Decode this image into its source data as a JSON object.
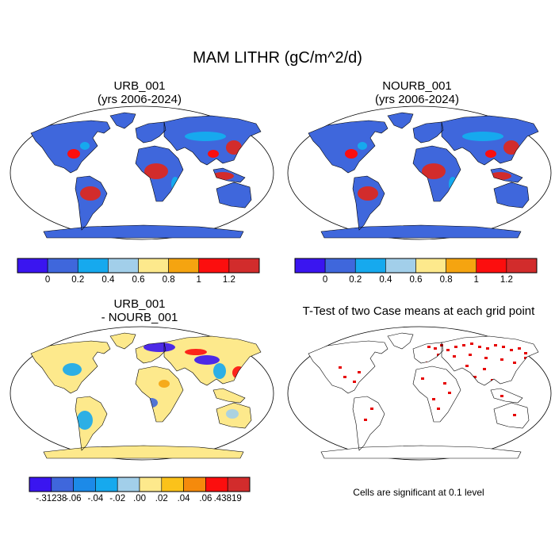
{
  "figure_title": "MAM LITHR (gC/m^2/d)",
  "panels": [
    {
      "title_line1": "URB_001",
      "title_line2": "(yrs 2006-2024)"
    },
    {
      "title_line1": "NOURB_001",
      "title_line2": "(yrs 2006-2024)"
    },
    {
      "title_line1": "URB_001",
      "title_line2": "- NOURB_001"
    },
    {
      "title_line1": "T-Test of two Case means at each grid point",
      "title_line2": ""
    }
  ],
  "colorbar_top": {
    "colors": [
      "#3a15f0",
      "#3f67dc",
      "#16a9ee",
      "#a2cfea",
      "#fde98c",
      "#f5a410",
      "#fc0e0e",
      "#d22c2c"
    ],
    "labels": [
      "0",
      "0.2",
      "0.4",
      "0.6",
      "0.8",
      "1",
      "1.2"
    ]
  },
  "colorbar_diff": {
    "colors": [
      "#3a15f0",
      "#3f67dc",
      "#1c8ae8",
      "#16a9ee",
      "#a2cfea",
      "#fde98c",
      "#fbc21a",
      "#f58a0c",
      "#fc0e0e",
      "#d22c2c"
    ],
    "labels": [
      ".31238",
      ".06",
      ".04",
      ".02",
      ".00",
      ".02",
      ".04",
      ".06",
      ".43819"
    ],
    "label_signs": [
      "-",
      "-",
      "-",
      "-",
      "",
      "",
      "",
      "",
      ""
    ]
  },
  "significance_note": "Cells are significant at 0.1 level",
  "map_colors": {
    "ocean": "#ffffff",
    "land_low": "#3f67dc",
    "land_mid": "#16a9ee",
    "land_high": "#d22c2c",
    "land_peak": "#fc0e0e",
    "diff_base": "#fde98c",
    "signif": "#e60000"
  }
}
